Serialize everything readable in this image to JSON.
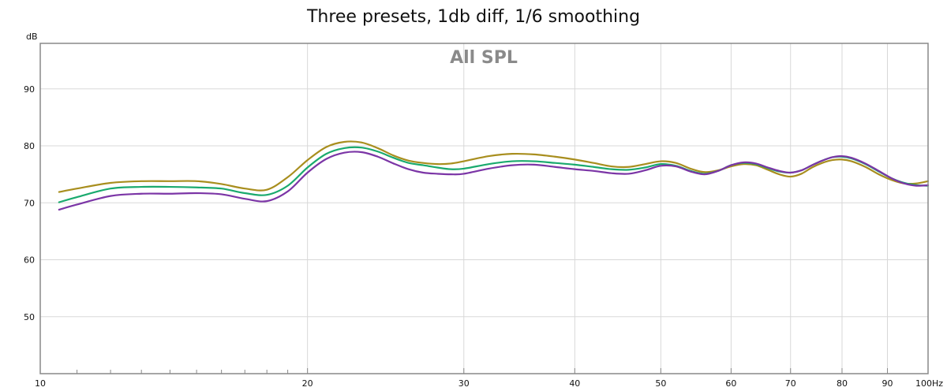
{
  "chart_data": {
    "type": "line",
    "title": "Three presets, 1db diff, 1/6 smoothing",
    "inner_title": "All SPL",
    "ylabel": "dB",
    "xunit": "Hz",
    "x_scale": "log",
    "xlim": [
      10,
      100
    ],
    "ylim": [
      40,
      98
    ],
    "yticks": [
      50,
      60,
      70,
      80,
      90
    ],
    "xticks": [
      10,
      20,
      30,
      40,
      50,
      60,
      70,
      80,
      90,
      100
    ],
    "xtick_labels": [
      "10",
      "20",
      "30",
      "40",
      "50",
      "60",
      "70",
      "80",
      "90",
      "100Hz"
    ],
    "minor_xticks": [
      11,
      12,
      13,
      14,
      15,
      16,
      17,
      18,
      19
    ],
    "grid": true,
    "series": [
      {
        "color": "#a88e1e",
        "points": [
          [
            10.5,
            71.9
          ],
          [
            11,
            72.5
          ],
          [
            12,
            73.5
          ],
          [
            13,
            73.8
          ],
          [
            14,
            73.8
          ],
          [
            15,
            73.8
          ],
          [
            16,
            73.3
          ],
          [
            17,
            72.5
          ],
          [
            18,
            72.3
          ],
          [
            19,
            74.5
          ],
          [
            20,
            77.5
          ],
          [
            21,
            79.8
          ],
          [
            22,
            80.7
          ],
          [
            23,
            80.6
          ],
          [
            24,
            79.6
          ],
          [
            25,
            78.3
          ],
          [
            26,
            77.4
          ],
          [
            27,
            77.0
          ],
          [
            28,
            76.8
          ],
          [
            29,
            76.9
          ],
          [
            30,
            77.3
          ],
          [
            32,
            78.2
          ],
          [
            34,
            78.6
          ],
          [
            36,
            78.5
          ],
          [
            38,
            78.1
          ],
          [
            40,
            77.6
          ],
          [
            42,
            77.0
          ],
          [
            44,
            76.4
          ],
          [
            46,
            76.3
          ],
          [
            48,
            76.8
          ],
          [
            50,
            77.3
          ],
          [
            52,
            77.0
          ],
          [
            54,
            76.0
          ],
          [
            56,
            75.4
          ],
          [
            58,
            75.7
          ],
          [
            60,
            76.4
          ],
          [
            62,
            76.8
          ],
          [
            64,
            76.6
          ],
          [
            66,
            75.8
          ],
          [
            68,
            75.0
          ],
          [
            70,
            74.6
          ],
          [
            72,
            75.1
          ],
          [
            74,
            76.2
          ],
          [
            76,
            77.0
          ],
          [
            78,
            77.5
          ],
          [
            80,
            77.6
          ],
          [
            82,
            77.3
          ],
          [
            85,
            76.3
          ],
          [
            88,
            75.0
          ],
          [
            91,
            74.0
          ],
          [
            94,
            73.4
          ],
          [
            97,
            73.4
          ],
          [
            100,
            73.8
          ]
        ]
      },
      {
        "color": "#1aaa6e",
        "points": [
          [
            10.5,
            70.1
          ],
          [
            11,
            71.0
          ],
          [
            12,
            72.5
          ],
          [
            13,
            72.8
          ],
          [
            14,
            72.8
          ],
          [
            15,
            72.7
          ],
          [
            16,
            72.5
          ],
          [
            17,
            71.7
          ],
          [
            18,
            71.4
          ],
          [
            19,
            73.0
          ],
          [
            20,
            76.2
          ],
          [
            21,
            78.6
          ],
          [
            22,
            79.6
          ],
          [
            23,
            79.7
          ],
          [
            24,
            79.0
          ],
          [
            25,
            77.9
          ],
          [
            26,
            77.0
          ],
          [
            27,
            76.6
          ],
          [
            28,
            76.2
          ],
          [
            29,
            75.9
          ],
          [
            30,
            76.0
          ],
          [
            32,
            76.8
          ],
          [
            34,
            77.3
          ],
          [
            36,
            77.3
          ],
          [
            38,
            77.0
          ],
          [
            40,
            76.7
          ],
          [
            42,
            76.3
          ],
          [
            44,
            75.9
          ],
          [
            46,
            75.8
          ],
          [
            48,
            76.2
          ],
          [
            50,
            76.8
          ],
          [
            52,
            76.5
          ],
          [
            54,
            75.6
          ],
          [
            56,
            75.1
          ],
          [
            58,
            75.6
          ],
          [
            60,
            76.6
          ],
          [
            62,
            77.0
          ],
          [
            64,
            76.8
          ],
          [
            66,
            76.1
          ],
          [
            68,
            75.5
          ],
          [
            70,
            75.3
          ],
          [
            72,
            75.7
          ],
          [
            74,
            76.6
          ],
          [
            76,
            77.4
          ],
          [
            78,
            78.0
          ],
          [
            80,
            78.1
          ],
          [
            82,
            77.8
          ],
          [
            85,
            76.8
          ],
          [
            88,
            75.5
          ],
          [
            91,
            74.3
          ],
          [
            94,
            73.5
          ],
          [
            97,
            73.1
          ],
          [
            100,
            73.0
          ]
        ]
      },
      {
        "color": "#7b35a6",
        "points": [
          [
            10.5,
            68.8
          ],
          [
            11,
            69.7
          ],
          [
            12,
            71.2
          ],
          [
            13,
            71.6
          ],
          [
            14,
            71.6
          ],
          [
            15,
            71.7
          ],
          [
            16,
            71.5
          ],
          [
            17,
            70.7
          ],
          [
            18,
            70.3
          ],
          [
            19,
            72.0
          ],
          [
            20,
            75.3
          ],
          [
            21,
            77.7
          ],
          [
            22,
            78.8
          ],
          [
            23,
            78.9
          ],
          [
            24,
            78.1
          ],
          [
            25,
            76.9
          ],
          [
            26,
            75.9
          ],
          [
            27,
            75.3
          ],
          [
            28,
            75.1
          ],
          [
            29,
            75.0
          ],
          [
            30,
            75.1
          ],
          [
            32,
            76.0
          ],
          [
            34,
            76.6
          ],
          [
            36,
            76.7
          ],
          [
            38,
            76.3
          ],
          [
            40,
            75.9
          ],
          [
            42,
            75.6
          ],
          [
            44,
            75.2
          ],
          [
            46,
            75.1
          ],
          [
            48,
            75.7
          ],
          [
            50,
            76.5
          ],
          [
            52,
            76.4
          ],
          [
            54,
            75.5
          ],
          [
            56,
            75.0
          ],
          [
            58,
            75.6
          ],
          [
            60,
            76.6
          ],
          [
            62,
            77.1
          ],
          [
            64,
            76.9
          ],
          [
            66,
            76.2
          ],
          [
            68,
            75.6
          ],
          [
            70,
            75.3
          ],
          [
            72,
            75.7
          ],
          [
            74,
            76.6
          ],
          [
            76,
            77.4
          ],
          [
            78,
            78.0
          ],
          [
            80,
            78.2
          ],
          [
            82,
            77.9
          ],
          [
            85,
            76.9
          ],
          [
            88,
            75.6
          ],
          [
            91,
            74.3
          ],
          [
            94,
            73.4
          ],
          [
            97,
            73.0
          ],
          [
            100,
            73.1
          ]
        ]
      }
    ]
  }
}
